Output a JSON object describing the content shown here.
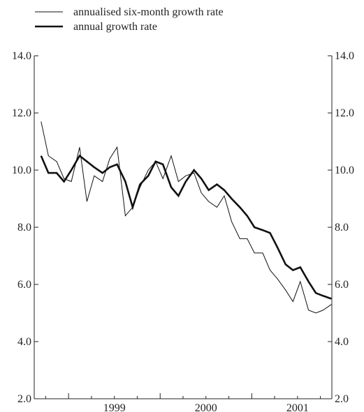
{
  "chart_data": {
    "type": "line",
    "title": "",
    "xlabel": "",
    "ylabel": "",
    "ylim": [
      2.0,
      14.0
    ],
    "yticks": [
      "2.0",
      "4.0",
      "6.0",
      "8.0",
      "10.0",
      "12.0",
      "14.0"
    ],
    "xlim": [
      1998.625,
      2001.875
    ],
    "xticks": [
      {
        "label": "1999",
        "value": 1999.0
      },
      {
        "label": "2000",
        "value": 2000.0
      },
      {
        "label": "2001",
        "value": 2001.0
      }
    ],
    "grid": false,
    "legend_position": "top-left",
    "x": [
      1998.7,
      1998.78,
      1998.87,
      1998.95,
      1999.03,
      1999.12,
      1999.2,
      1999.28,
      1999.37,
      1999.45,
      1999.53,
      1999.62,
      1999.7,
      1999.78,
      1999.87,
      1999.95,
      2000.03,
      2000.12,
      2000.2,
      2000.28,
      2000.37,
      2000.45,
      2000.53,
      2000.62,
      2000.7,
      2000.78,
      2000.87,
      2000.95,
      2001.03,
      2001.12,
      2001.2,
      2001.28,
      2001.37,
      2001.45,
      2001.53,
      2001.62,
      2001.7,
      2001.78,
      2001.87
    ],
    "series": [
      {
        "name": "annualised six-month growth rate",
        "color": "#111111",
        "line_style": "thin",
        "values": [
          11.7,
          10.5,
          10.3,
          9.7,
          9.6,
          10.8,
          8.9,
          9.8,
          9.6,
          10.4,
          10.8,
          8.4,
          8.7,
          9.4,
          10.0,
          10.3,
          9.7,
          10.5,
          9.6,
          9.8,
          9.9,
          9.2,
          8.9,
          8.7,
          9.1,
          8.2,
          7.6,
          7.6,
          7.1,
          7.1,
          6.5,
          6.2,
          5.8,
          5.4,
          6.1,
          5.1,
          5.0,
          5.1,
          5.3
        ]
      },
      {
        "name": "annual growth rate",
        "color": "#111111",
        "line_style": "thick",
        "values": [
          10.5,
          9.9,
          9.9,
          9.6,
          10.0,
          10.5,
          10.3,
          10.1,
          9.9,
          10.1,
          10.2,
          9.6,
          8.7,
          9.5,
          9.8,
          10.3,
          10.2,
          9.4,
          9.1,
          9.6,
          10.0,
          9.7,
          9.3,
          9.5,
          9.3,
          9.0,
          8.7,
          8.4,
          8.0,
          7.9,
          7.8,
          7.3,
          6.7,
          6.5,
          6.6,
          6.1,
          5.7,
          5.6,
          5.5
        ]
      }
    ]
  }
}
